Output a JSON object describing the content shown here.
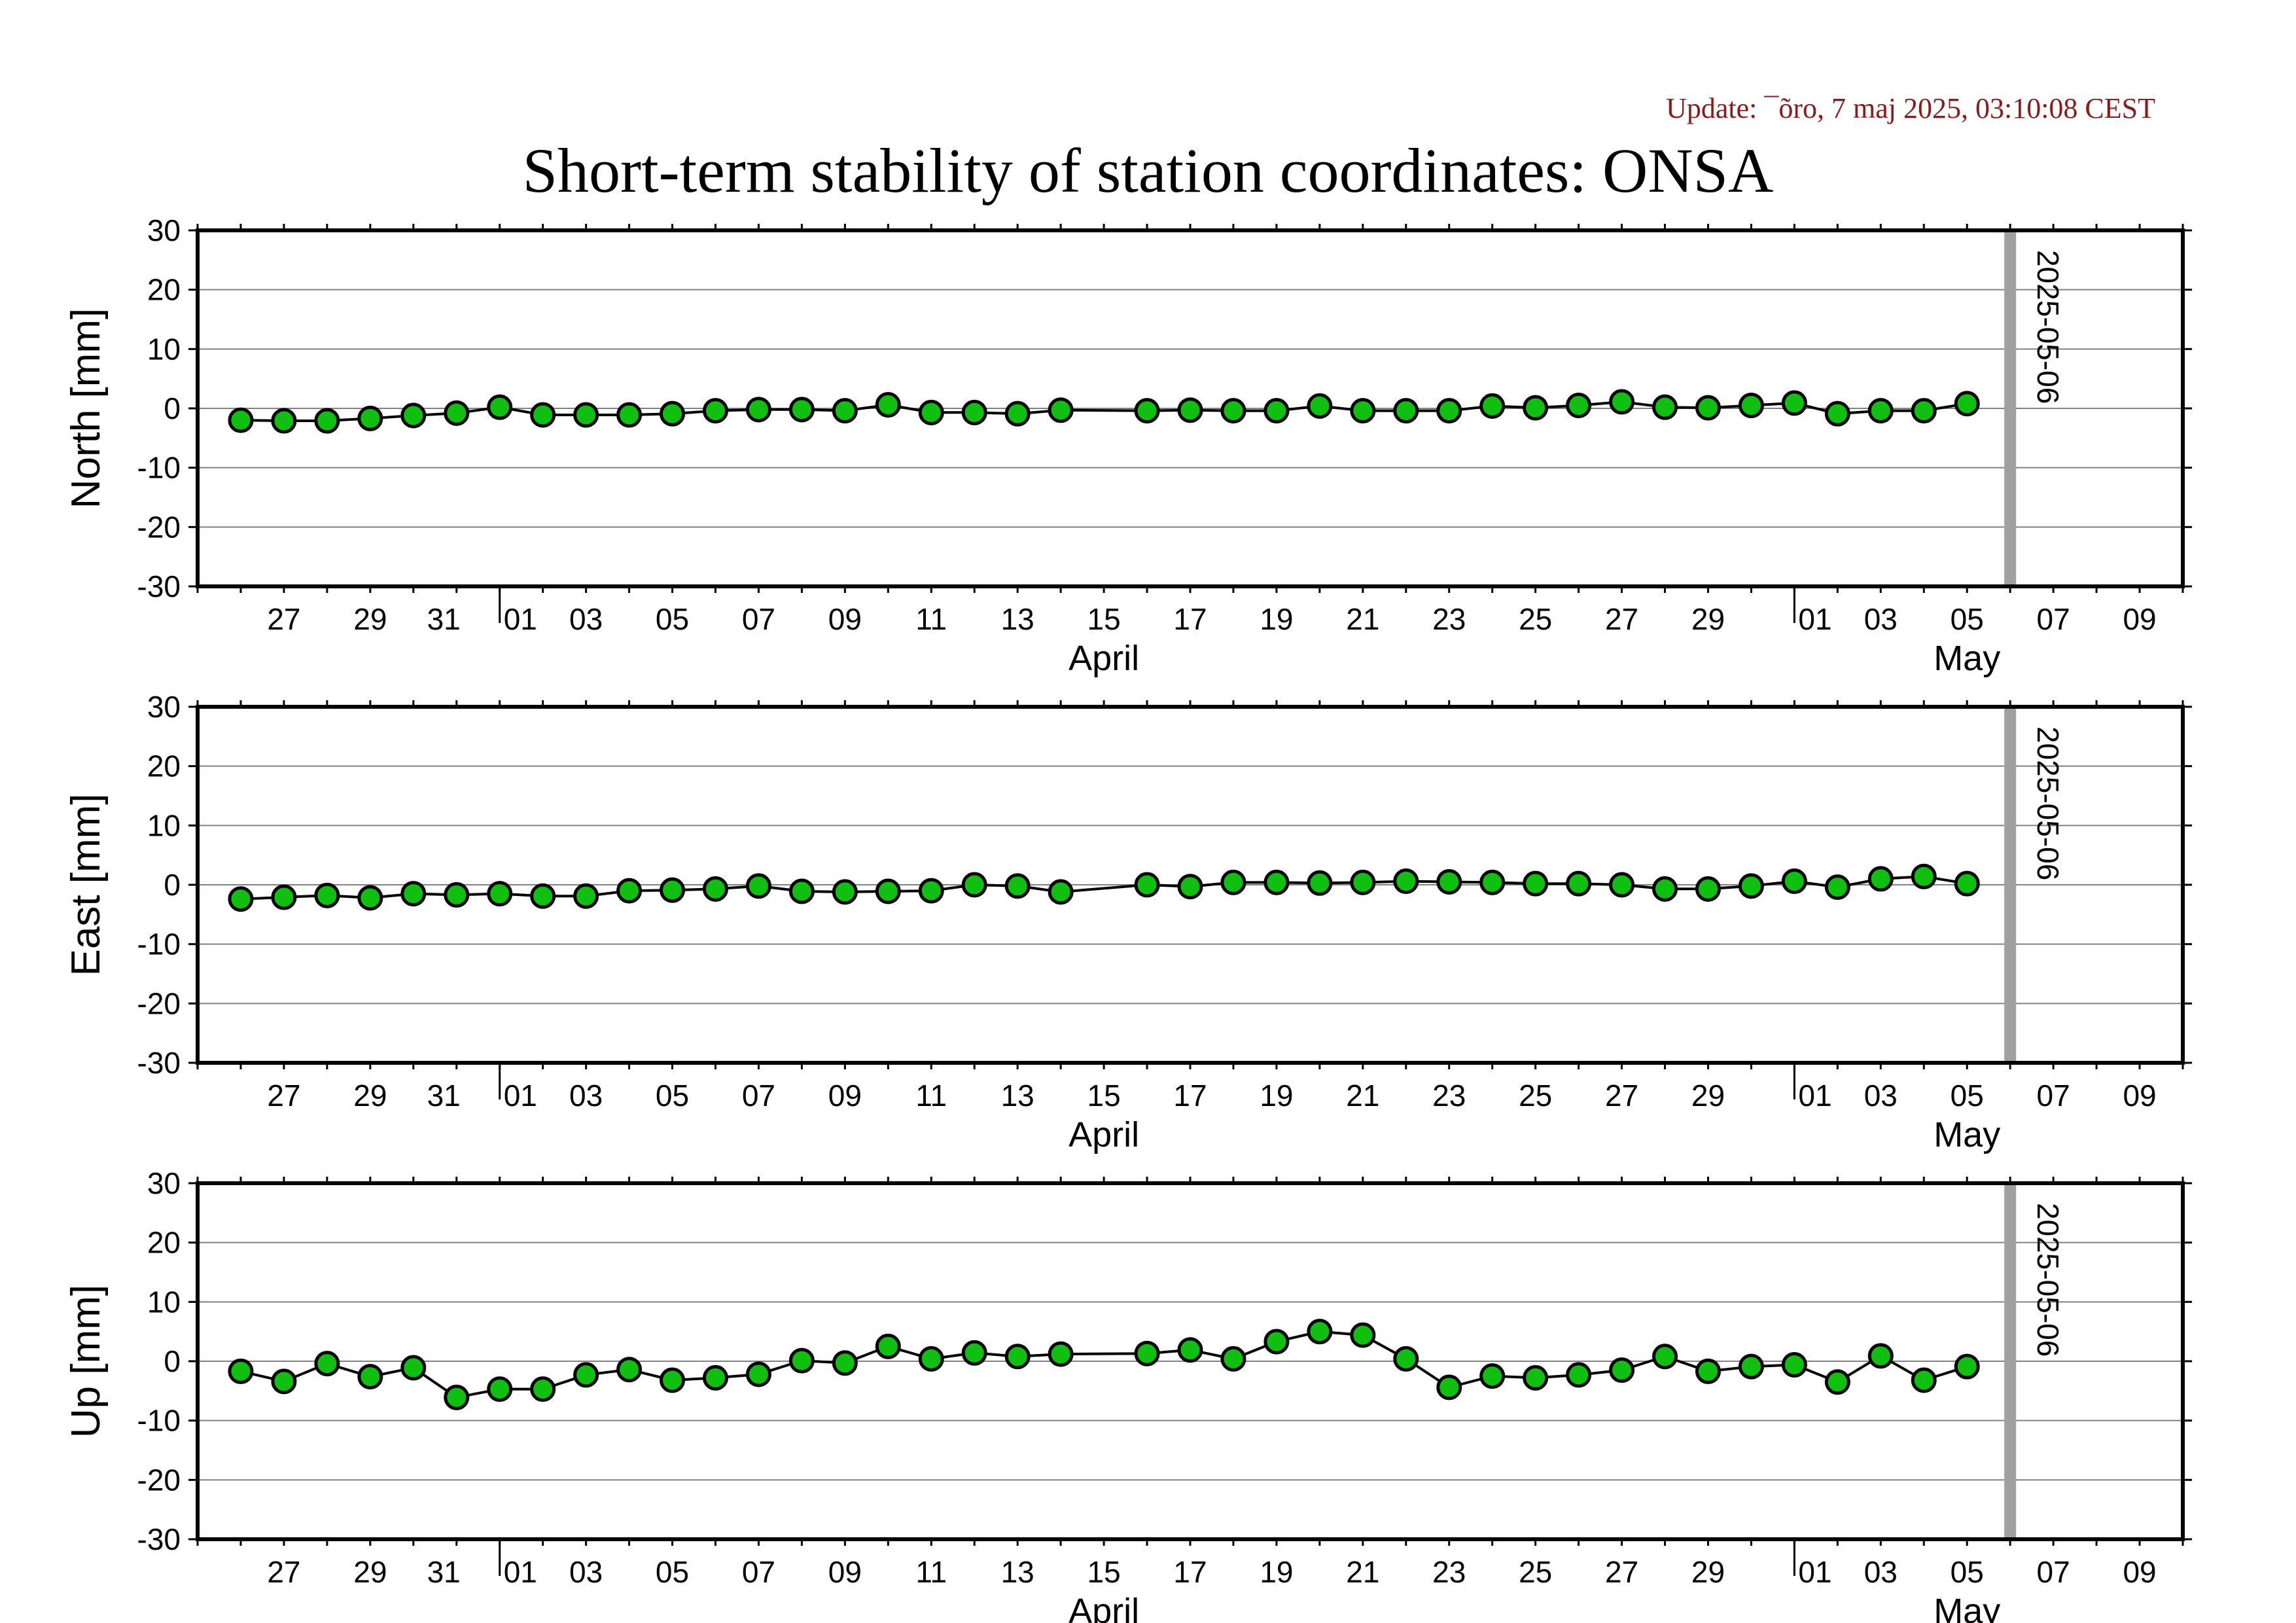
{
  "header": {
    "update": "Update: ¯õro, 7 maj 2025, 03:10:08 CEST",
    "title": "Short-term stability of station coordinates: ONSA"
  },
  "colors": {
    "marker": "#10c010",
    "marker_edge": "#000000",
    "grid": "#808080",
    "vline": "#a0a0a0",
    "update_text": "#8b1a1a"
  },
  "chart_data": [
    {
      "type": "line",
      "name": "north",
      "ylabel": "North [mm]",
      "ylim": [
        -30,
        30
      ],
      "yticks": [
        -30,
        -20,
        -10,
        0,
        10,
        20,
        30
      ],
      "xlim": [
        "2025-03-25",
        "2025-05-10"
      ],
      "month_labels": [
        {
          "date": "2025-04-15",
          "label": "April"
        },
        {
          "date": "2025-05-05",
          "label": "May"
        }
      ],
      "vertical_line": {
        "date": "2025-05-06",
        "label": "2025-05-06"
      },
      "grid": true,
      "x": [
        "2025-03-26",
        "2025-03-27",
        "2025-03-28",
        "2025-03-29",
        "2025-03-30",
        "2025-03-31",
        "2025-04-01",
        "2025-04-02",
        "2025-04-03",
        "2025-04-04",
        "2025-04-05",
        "2025-04-06",
        "2025-04-07",
        "2025-04-08",
        "2025-04-09",
        "2025-04-10",
        "2025-04-11",
        "2025-04-12",
        "2025-04-13",
        "2025-04-14",
        "2025-04-16",
        "2025-04-17",
        "2025-04-18",
        "2025-04-19",
        "2025-04-20",
        "2025-04-21",
        "2025-04-22",
        "2025-04-23",
        "2025-04-24",
        "2025-04-25",
        "2025-04-26",
        "2025-04-27",
        "2025-04-28",
        "2025-04-29",
        "2025-04-30",
        "2025-05-01",
        "2025-05-02",
        "2025-05-03",
        "2025-05-04",
        "2025-05-05"
      ],
      "values": [
        -2.0,
        -2.1,
        -2.1,
        -1.7,
        -1.2,
        -0.8,
        0.2,
        -1.1,
        -1.1,
        -1.1,
        -0.9,
        -0.4,
        -0.2,
        -0.2,
        -0.4,
        0.6,
        -0.7,
        -0.7,
        -0.9,
        -0.3,
        -0.4,
        -0.3,
        -0.4,
        -0.4,
        0.4,
        -0.4,
        -0.4,
        -0.4,
        0.4,
        0.1,
        0.5,
        1.1,
        0.2,
        0.1,
        0.5,
        0.9,
        -0.9,
        -0.4,
        -0.4,
        0.8
      ]
    },
    {
      "type": "line",
      "name": "east",
      "ylabel": "East [mm]",
      "ylim": [
        -30,
        30
      ],
      "yticks": [
        -30,
        -20,
        -10,
        0,
        10,
        20,
        30
      ],
      "xlim": [
        "2025-03-25",
        "2025-05-10"
      ],
      "month_labels": [
        {
          "date": "2025-04-15",
          "label": "April"
        },
        {
          "date": "2025-05-05",
          "label": "May"
        }
      ],
      "vertical_line": {
        "date": "2025-05-06",
        "label": "2025-05-06"
      },
      "grid": true,
      "x": [
        "2025-03-26",
        "2025-03-27",
        "2025-03-28",
        "2025-03-29",
        "2025-03-30",
        "2025-03-31",
        "2025-04-01",
        "2025-04-02",
        "2025-04-03",
        "2025-04-04",
        "2025-04-05",
        "2025-04-06",
        "2025-04-07",
        "2025-04-08",
        "2025-04-09",
        "2025-04-10",
        "2025-04-11",
        "2025-04-12",
        "2025-04-13",
        "2025-04-14",
        "2025-04-16",
        "2025-04-17",
        "2025-04-18",
        "2025-04-19",
        "2025-04-20",
        "2025-04-21",
        "2025-04-22",
        "2025-04-23",
        "2025-04-24",
        "2025-04-25",
        "2025-04-26",
        "2025-04-27",
        "2025-04-28",
        "2025-04-29",
        "2025-04-30",
        "2025-05-01",
        "2025-05-02",
        "2025-05-03",
        "2025-05-04",
        "2025-05-05"
      ],
      "values": [
        -2.4,
        -2.1,
        -1.8,
        -2.2,
        -1.5,
        -1.7,
        -1.5,
        -1.9,
        -1.9,
        -1.0,
        -0.9,
        -0.7,
        -0.2,
        -1.1,
        -1.2,
        -1.1,
        -1.0,
        0.0,
        -0.2,
        -1.2,
        0.0,
        -0.3,
        0.4,
        0.4,
        0.3,
        0.4,
        0.6,
        0.5,
        0.4,
        0.2,
        0.2,
        0.0,
        -0.7,
        -0.7,
        -0.2,
        0.6,
        -0.4,
        1.0,
        1.4,
        0.2
      ]
    },
    {
      "type": "line",
      "name": "up",
      "ylabel": "Up [mm]",
      "ylim": [
        -30,
        30
      ],
      "yticks": [
        -30,
        -20,
        -10,
        0,
        10,
        20,
        30
      ],
      "xlim": [
        "2025-03-25",
        "2025-05-10"
      ],
      "month_labels": [
        {
          "date": "2025-04-15",
          "label": "April"
        },
        {
          "date": "2025-05-05",
          "label": "May"
        }
      ],
      "vertical_line": {
        "date": "2025-05-06",
        "label": "2025-05-06"
      },
      "grid": true,
      "x": [
        "2025-03-26",
        "2025-03-27",
        "2025-03-28",
        "2025-03-29",
        "2025-03-30",
        "2025-03-31",
        "2025-04-01",
        "2025-04-02",
        "2025-04-03",
        "2025-04-04",
        "2025-04-05",
        "2025-04-06",
        "2025-04-07",
        "2025-04-08",
        "2025-04-09",
        "2025-04-10",
        "2025-04-11",
        "2025-04-12",
        "2025-04-13",
        "2025-04-14",
        "2025-04-16",
        "2025-04-17",
        "2025-04-18",
        "2025-04-19",
        "2025-04-20",
        "2025-04-21",
        "2025-04-22",
        "2025-04-23",
        "2025-04-24",
        "2025-04-25",
        "2025-04-26",
        "2025-04-27",
        "2025-04-28",
        "2025-04-29",
        "2025-04-30",
        "2025-05-01",
        "2025-05-02",
        "2025-05-03",
        "2025-05-04",
        "2025-05-05"
      ],
      "values": [
        -1.7,
        -3.4,
        -0.4,
        -2.6,
        -1.1,
        -6.1,
        -4.7,
        -4.7,
        -2.3,
        -1.4,
        -3.2,
        -2.8,
        -2.2,
        0.1,
        -0.3,
        2.5,
        0.4,
        1.4,
        0.8,
        1.2,
        1.3,
        1.9,
        0.4,
        3.3,
        5.0,
        4.4,
        0.4,
        -4.4,
        -2.5,
        -2.8,
        -2.3,
        -1.5,
        0.8,
        -1.7,
        -0.9,
        -0.6,
        -3.5,
        0.9,
        -3.2,
        -0.9
      ]
    }
  ]
}
